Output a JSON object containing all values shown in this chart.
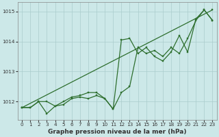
{
  "title": "Graphe pression niveau de la mer (hPa)",
  "bg_color": "#cce8e8",
  "grid_color": "#aacccc",
  "line_color": "#2d6e2d",
  "xlim": [
    -0.5,
    23.5
  ],
  "ylim": [
    1011.4,
    1015.3
  ],
  "yticks": [
    1012,
    1013,
    1014,
    1015
  ],
  "xticks": [
    0,
    1,
    2,
    3,
    4,
    5,
    6,
    7,
    8,
    9,
    10,
    11,
    12,
    13,
    14,
    15,
    16,
    17,
    18,
    19,
    20,
    21,
    22,
    23
  ],
  "series1_x": [
    0,
    1,
    2,
    3,
    4,
    5,
    6,
    7,
    8,
    9,
    10,
    11,
    12,
    13,
    14,
    15,
    16,
    17,
    18,
    19,
    20,
    21,
    22,
    23
  ],
  "series1_y": [
    1011.8,
    1011.8,
    1012.0,
    1011.6,
    1011.85,
    1011.9,
    1012.1,
    1012.15,
    1012.1,
    1012.2,
    1012.1,
    1011.75,
    1012.3,
    1012.5,
    1013.8,
    1013.6,
    1013.7,
    1013.5,
    1013.8,
    1013.6,
    1014.1,
    1014.7,
    1015.05,
    1014.7
  ],
  "series2_x": [
    0,
    1,
    2,
    3,
    4,
    5,
    6,
    7,
    8,
    9,
    10,
    11,
    12,
    13,
    14,
    15,
    16,
    17,
    18,
    19,
    20,
    21,
    22,
    23
  ],
  "series2_y": [
    1011.8,
    1011.8,
    1012.0,
    1012.0,
    1011.85,
    1012.0,
    1012.15,
    1012.2,
    1012.3,
    1012.3,
    1012.1,
    1011.75,
    1014.05,
    1014.1,
    1013.6,
    1013.8,
    1013.5,
    1013.35,
    1013.65,
    1014.2,
    1013.65,
    1014.75,
    1015.05,
    1014.7
  ],
  "series3_x": [
    0,
    23
  ],
  "series3_y": [
    1011.8,
    1015.05
  ],
  "marker_size": 1.8,
  "line_width": 0.9,
  "xlabel_size": 6.5,
  "tick_size": 5.2
}
